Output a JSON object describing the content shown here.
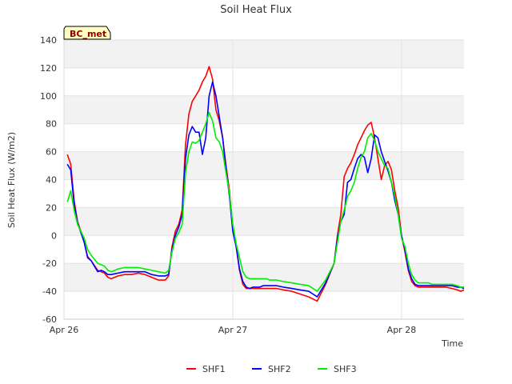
{
  "chart_data": {
    "type": "line",
    "title": "Soil Heat Flux",
    "xlabel": "Time",
    "ylabel": "Soil Heat Flux (W/m2)",
    "ylim": [
      -60,
      140
    ],
    "yticks": [
      -60,
      -40,
      -20,
      0,
      20,
      40,
      60,
      80,
      100,
      120,
      140
    ],
    "xlim": [
      0,
      2.37
    ],
    "xticks": [
      {
        "value": 0,
        "label": "Apr 26"
      },
      {
        "value": 1,
        "label": "Apr 27"
      },
      {
        "value": 2,
        "label": "Apr 28"
      }
    ],
    "grid": true,
    "badge": "BC_met",
    "legend_position": "bottom-center",
    "series": [
      {
        "name": "SHF1",
        "color": "#ff0000",
        "x": [
          0.02,
          0.04,
          0.06,
          0.08,
          0.1,
          0.12,
          0.14,
          0.16,
          0.2,
          0.22,
          0.24,
          0.26,
          0.28,
          0.32,
          0.36,
          0.4,
          0.44,
          0.48,
          0.52,
          0.56,
          0.6,
          0.62,
          0.64,
          0.66,
          0.68,
          0.7,
          0.72,
          0.74,
          0.76,
          0.78,
          0.8,
          0.82,
          0.84,
          0.86,
          0.88,
          0.9,
          0.92,
          0.94,
          0.96,
          0.98,
          1.0,
          1.02,
          1.04,
          1.06,
          1.08,
          1.1,
          1.12,
          1.14,
          1.16,
          1.18,
          1.2,
          1.22,
          1.24,
          1.26,
          1.3,
          1.35,
          1.4,
          1.45,
          1.5,
          1.55,
          1.6,
          1.62,
          1.64,
          1.66,
          1.68,
          1.7,
          1.72,
          1.74,
          1.76,
          1.78,
          1.8,
          1.82,
          1.84,
          1.86,
          1.88,
          1.9,
          1.92,
          1.94,
          1.96,
          1.98,
          2.0,
          2.02,
          2.04,
          2.06,
          2.08,
          2.1,
          2.12,
          2.14,
          2.16,
          2.18,
          2.2,
          2.22,
          2.26,
          2.3,
          2.33,
          2.35,
          2.37
        ],
        "y": [
          58,
          51,
          25,
          10,
          3,
          -5,
          -15,
          -18,
          -25,
          -26,
          -27,
          -30,
          -31,
          -29,
          -28,
          -28,
          -27,
          -28,
          -30,
          -32,
          -32,
          -29,
          -8,
          3,
          8,
          18,
          65,
          87,
          96,
          100,
          104,
          110,
          114,
          121,
          112,
          90,
          82,
          70,
          50,
          32,
          5,
          -8,
          -25,
          -35,
          -38,
          -38,
          -38,
          -38,
          -38,
          -38,
          -38,
          -38,
          -38,
          -38,
          -39,
          -40,
          -42,
          -44,
          -47,
          -35,
          -20,
          0,
          15,
          42,
          48,
          52,
          58,
          65,
          70,
          75,
          79,
          81,
          70,
          55,
          40,
          50,
          53,
          47,
          32,
          20,
          0,
          -12,
          -25,
          -33,
          -36,
          -37,
          -37,
          -37,
          -37,
          -37,
          -37,
          -37,
          -37,
          -38,
          -39,
          -40,
          -39
        ]
      },
      {
        "name": "SHF2",
        "color": "#0000ff",
        "x": [
          0.02,
          0.04,
          0.06,
          0.08,
          0.1,
          0.12,
          0.14,
          0.16,
          0.2,
          0.22,
          0.24,
          0.26,
          0.28,
          0.32,
          0.36,
          0.4,
          0.44,
          0.48,
          0.52,
          0.56,
          0.6,
          0.62,
          0.64,
          0.66,
          0.68,
          0.7,
          0.72,
          0.74,
          0.76,
          0.78,
          0.8,
          0.82,
          0.84,
          0.86,
          0.88,
          0.9,
          0.92,
          0.94,
          0.96,
          0.98,
          1.0,
          1.02,
          1.04,
          1.06,
          1.08,
          1.1,
          1.12,
          1.14,
          1.16,
          1.18,
          1.2,
          1.22,
          1.24,
          1.26,
          1.3,
          1.35,
          1.4,
          1.45,
          1.5,
          1.55,
          1.6,
          1.62,
          1.64,
          1.66,
          1.68,
          1.7,
          1.72,
          1.74,
          1.76,
          1.78,
          1.8,
          1.82,
          1.84,
          1.86,
          1.88,
          1.9,
          1.92,
          1.94,
          1.96,
          1.98,
          2.0,
          2.02,
          2.04,
          2.06,
          2.08,
          2.1,
          2.12,
          2.14,
          2.16,
          2.18,
          2.2,
          2.22,
          2.26,
          2.3,
          2.33,
          2.35,
          2.37
        ],
        "y": [
          51,
          47,
          22,
          9,
          2,
          -5,
          -16,
          -18,
          -26,
          -25,
          -26,
          -28,
          -28,
          -27,
          -26,
          -26,
          -26,
          -26,
          -28,
          -29,
          -29,
          -28,
          -10,
          0,
          6,
          15,
          55,
          72,
          78,
          74,
          74,
          58,
          70,
          100,
          110,
          100,
          85,
          70,
          48,
          28,
          3,
          -8,
          -24,
          -33,
          -37,
          -38,
          -37,
          -37,
          -37,
          -36,
          -36,
          -36,
          -36,
          -36,
          -37,
          -38,
          -39,
          -40,
          -44,
          -34,
          -20,
          -2,
          10,
          15,
          38,
          40,
          48,
          55,
          58,
          56,
          45,
          55,
          72,
          70,
          60,
          53,
          46,
          38,
          25,
          15,
          0,
          -10,
          -24,
          -31,
          -35,
          -36,
          -36,
          -36,
          -36,
          -36,
          -36,
          -36,
          -36,
          -36,
          -37,
          -37,
          -38
        ]
      },
      {
        "name": "SHF3",
        "color": "#00ee00",
        "x": [
          0.02,
          0.04,
          0.06,
          0.08,
          0.1,
          0.12,
          0.14,
          0.16,
          0.2,
          0.22,
          0.24,
          0.26,
          0.28,
          0.32,
          0.36,
          0.4,
          0.44,
          0.48,
          0.52,
          0.56,
          0.6,
          0.62,
          0.64,
          0.66,
          0.68,
          0.7,
          0.72,
          0.74,
          0.76,
          0.78,
          0.8,
          0.82,
          0.84,
          0.86,
          0.88,
          0.9,
          0.92,
          0.94,
          0.96,
          0.98,
          1.0,
          1.02,
          1.04,
          1.06,
          1.08,
          1.1,
          1.12,
          1.14,
          1.16,
          1.18,
          1.2,
          1.22,
          1.24,
          1.26,
          1.3,
          1.35,
          1.4,
          1.45,
          1.5,
          1.55,
          1.6,
          1.62,
          1.64,
          1.66,
          1.68,
          1.7,
          1.72,
          1.74,
          1.76,
          1.78,
          1.8,
          1.82,
          1.84,
          1.86,
          1.88,
          1.9,
          1.92,
          1.94,
          1.96,
          1.98,
          2.0,
          2.02,
          2.04,
          2.06,
          2.08,
          2.1,
          2.12,
          2.14,
          2.16,
          2.18,
          2.2,
          2.22,
          2.26,
          2.3,
          2.33,
          2.35,
          2.37
        ],
        "y": [
          24,
          32,
          18,
          8,
          3,
          -2,
          -10,
          -14,
          -20,
          -21,
          -22,
          -25,
          -26,
          -24,
          -23,
          -23,
          -23,
          -24,
          -25,
          -26,
          -27,
          -25,
          -12,
          -2,
          2,
          8,
          45,
          60,
          67,
          66,
          68,
          74,
          80,
          88,
          82,
          70,
          67,
          60,
          45,
          30,
          8,
          -6,
          -16,
          -26,
          -30,
          -31,
          -31,
          -31,
          -31,
          -31,
          -31,
          -32,
          -32,
          -32,
          -33,
          -34,
          -35,
          -36,
          -40,
          -32,
          -20,
          -5,
          10,
          18,
          28,
          32,
          38,
          48,
          56,
          60,
          70,
          73,
          68,
          60,
          55,
          50,
          48,
          38,
          28,
          15,
          -2,
          -8,
          -20,
          -28,
          -32,
          -34,
          -34,
          -34,
          -34,
          -35,
          -35,
          -35,
          -35,
          -35,
          -36,
          -37,
          -37
        ]
      }
    ]
  }
}
